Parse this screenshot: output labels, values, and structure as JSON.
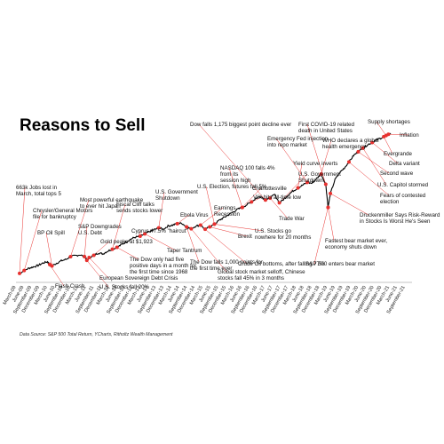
{
  "chart_data": {
    "type": "line",
    "title": "Reasons to Sell",
    "source": "Data Source: S&P 500 Total Return, YCharts, Ritholtz Wealth Management",
    "line_color": "#000000",
    "marker_color": "#e8312f",
    "x_ticks": [
      "March-09",
      "June-09",
      "September-09",
      "December-09",
      "March-10",
      "June-10",
      "September-10",
      "December-10",
      "March-11",
      "June-11",
      "September-11",
      "December-11",
      "March-12",
      "June-12",
      "September-12",
      "December-12",
      "March-13",
      "June-13",
      "September-13",
      "December-13",
      "March-14",
      "June-14",
      "September-14",
      "December-14",
      "March-15",
      "June-15",
      "September-15",
      "December-15",
      "March-16",
      "June-16",
      "September-16",
      "December-16",
      "March-17",
      "June-17",
      "September-17",
      "December-17",
      "March-18",
      "June-18",
      "September-18",
      "December-18",
      "March-19",
      "June-19",
      "September-19",
      "December-19",
      "March-20",
      "June-20",
      "September-20",
      "December-20",
      "March-21",
      "June-21",
      "September-21"
    ],
    "series_path": [
      [
        0,
        8
      ],
      [
        2,
        14
      ],
      [
        4,
        19
      ],
      [
        6,
        22
      ],
      [
        8,
        25
      ],
      [
        10,
        30
      ],
      [
        12,
        33
      ],
      [
        13,
        27
      ],
      [
        14,
        24
      ],
      [
        16,
        30
      ],
      [
        18,
        35
      ],
      [
        20,
        38
      ],
      [
        22,
        44
      ],
      [
        24,
        46
      ],
      [
        26,
        48
      ],
      [
        28,
        44
      ],
      [
        29,
        36
      ],
      [
        30,
        42
      ],
      [
        32,
        47
      ],
      [
        34,
        52
      ],
      [
        36,
        50
      ],
      [
        38,
        56
      ],
      [
        40,
        60
      ],
      [
        42,
        64
      ],
      [
        44,
        70
      ],
      [
        46,
        76
      ],
      [
        48,
        82
      ],
      [
        50,
        86
      ],
      [
        52,
        88
      ],
      [
        54,
        93
      ],
      [
        56,
        98
      ],
      [
        58,
        102
      ],
      [
        60,
        106
      ],
      [
        62,
        103
      ],
      [
        64,
        110
      ],
      [
        66,
        112
      ],
      [
        68,
        115
      ],
      [
        70,
        116
      ],
      [
        72,
        108
      ],
      [
        74,
        104
      ],
      [
        76,
        110
      ],
      [
        78,
        112
      ],
      [
        80,
        103
      ],
      [
        82,
        108
      ],
      [
        84,
        114
      ],
      [
        86,
        122
      ],
      [
        88,
        128
      ],
      [
        90,
        134
      ],
      [
        92,
        140
      ],
      [
        94,
        146
      ],
      [
        96,
        150
      ],
      [
        98,
        156
      ],
      [
        100,
        162
      ],
      [
        102,
        170
      ],
      [
        104,
        174
      ],
      [
        106,
        166
      ],
      [
        108,
        170
      ],
      [
        110,
        178
      ],
      [
        112,
        160
      ],
      [
        114,
        168
      ],
      [
        116,
        178
      ],
      [
        118,
        186
      ],
      [
        120,
        192
      ],
      [
        122,
        198
      ],
      [
        124,
        204
      ],
      [
        126,
        202
      ],
      [
        128,
        212
      ],
      [
        130,
        222
      ],
      [
        132,
        200
      ],
      [
        133,
        150
      ],
      [
        134,
        180
      ],
      [
        136,
        210
      ],
      [
        138,
        225
      ],
      [
        140,
        235
      ],
      [
        142,
        248
      ],
      [
        144,
        262
      ],
      [
        146,
        270
      ],
      [
        148,
        278
      ],
      [
        150,
        285
      ],
      [
        152,
        290
      ],
      [
        154,
        296
      ],
      [
        156,
        300
      ],
      [
        158,
        305
      ],
      [
        160,
        310
      ]
    ],
    "annotations": [
      {
        "text": "663k Jobs lost in",
        "text2": "March, total tops 5",
        "x": 0
      },
      {
        "text": "Chrysler/General Motors",
        "text2": "file for bankruptcy",
        "x": 2
      },
      {
        "text": "BP Oil Spill",
        "text2": "",
        "x": 14
      },
      {
        "text": "Flash Crash",
        "text2": "",
        "x": 13
      },
      {
        "text": "Most powerful earthquake",
        "text2": "to ever hit Japan",
        "x": 22
      },
      {
        "text": "S&P Downgrades",
        "text2": "U.S. Debt",
        "x": 28
      },
      {
        "text": "U.S. Stocks fall 20%",
        "text2": "",
        "x": 29
      },
      {
        "text": "European Sovereign Debt Crisis",
        "text2": "",
        "x": 30
      },
      {
        "text": "Fiscal Cliff talks",
        "text2": "sends stocks lower",
        "x": 40
      },
      {
        "text": "Gold peaks at $1,923",
        "text2": "",
        "x": 32
      },
      {
        "text": "The Dow only had five",
        "text2": "positive days in a month for",
        "text3": "the first time since 1968",
        "x": 42
      },
      {
        "text": "Cyprus 47.5% \"haircut\"",
        "text2": "",
        "x": 52
      },
      {
        "text": "U.S. Government",
        "text2": "Shutdown",
        "x": 60
      },
      {
        "text": "Taper Tantrum",
        "text2": "",
        "x": 54
      },
      {
        "text": "Ebola Virus",
        "text2": "",
        "x": 68
      },
      {
        "text": "The Dow falls 1,000 points for",
        "text2": "the first time ever",
        "x": 72
      },
      {
        "text": "Earnings",
        "text2": "Recession",
        "x": 78
      },
      {
        "text": "Global stock market selloff, Chinese",
        "text2": "stocks fall 45% in 3 months",
        "x": 74
      },
      {
        "text": "Crude Oil bottoms, after falling 77%",
        "text2": "",
        "x": 80
      },
      {
        "text": "Brexit",
        "text2": "",
        "x": 82
      },
      {
        "text": "U.S. Election, futures fall 5%",
        "text2": "",
        "x": 84
      },
      {
        "text": "U.S. Stocks go",
        "text2": "nowhere for 20 months",
        "x": 84
      },
      {
        "text": "NASDAQ 100 falls 4%",
        "text2": "from its",
        "text3": "session high",
        "x": 96
      },
      {
        "text": "Charlottesville",
        "text2": "",
        "x": 96
      },
      {
        "text": "VIX hits all-time low",
        "text2": "",
        "x": 100
      },
      {
        "text": "Dow falls 1,175 biggest point decline ever",
        "text2": "",
        "x": 106
      },
      {
        "text": "Trade War",
        "text2": "",
        "x": 108
      },
      {
        "text": "U.S. Government",
        "text2": "Shutdown",
        "x": 112
      },
      {
        "text": "Emergency Fed injection",
        "text2": "into repo market",
        "x": 124
      },
      {
        "text": "Yield curve inverts",
        "text2": "",
        "x": 120
      },
      {
        "text": "First COVID-19 related",
        "text2": "death in United States",
        "x": 132
      },
      {
        "text": "WHO declares a global",
        "text2": "health emergency",
        "x": 130
      },
      {
        "text": "S&P 500 enters bear market",
        "text2": "",
        "x": 133
      },
      {
        "text": "Fastest bear market ever,",
        "text2": "economy shuts down",
        "x": 133
      },
      {
        "text": "Druckenmiller Says Risk-Reward",
        "text2": "in Stocks Is Worst He's Seen",
        "x": 134
      },
      {
        "text": "Supply shortages",
        "text2": "",
        "x": 158
      },
      {
        "text": "Inflation",
        "text2": "",
        "x": 159
      },
      {
        "text": "Evergrande",
        "text2": "",
        "x": 157
      },
      {
        "text": "Delta variant",
        "text2": "",
        "x": 152
      },
      {
        "text": "Second wave",
        "text2": "",
        "x": 146
      },
      {
        "text": "U.S. Capitol stormed",
        "text2": "",
        "x": 148
      },
      {
        "text": "Fears of contested",
        "text2": "election",
        "x": 142
      }
    ]
  }
}
